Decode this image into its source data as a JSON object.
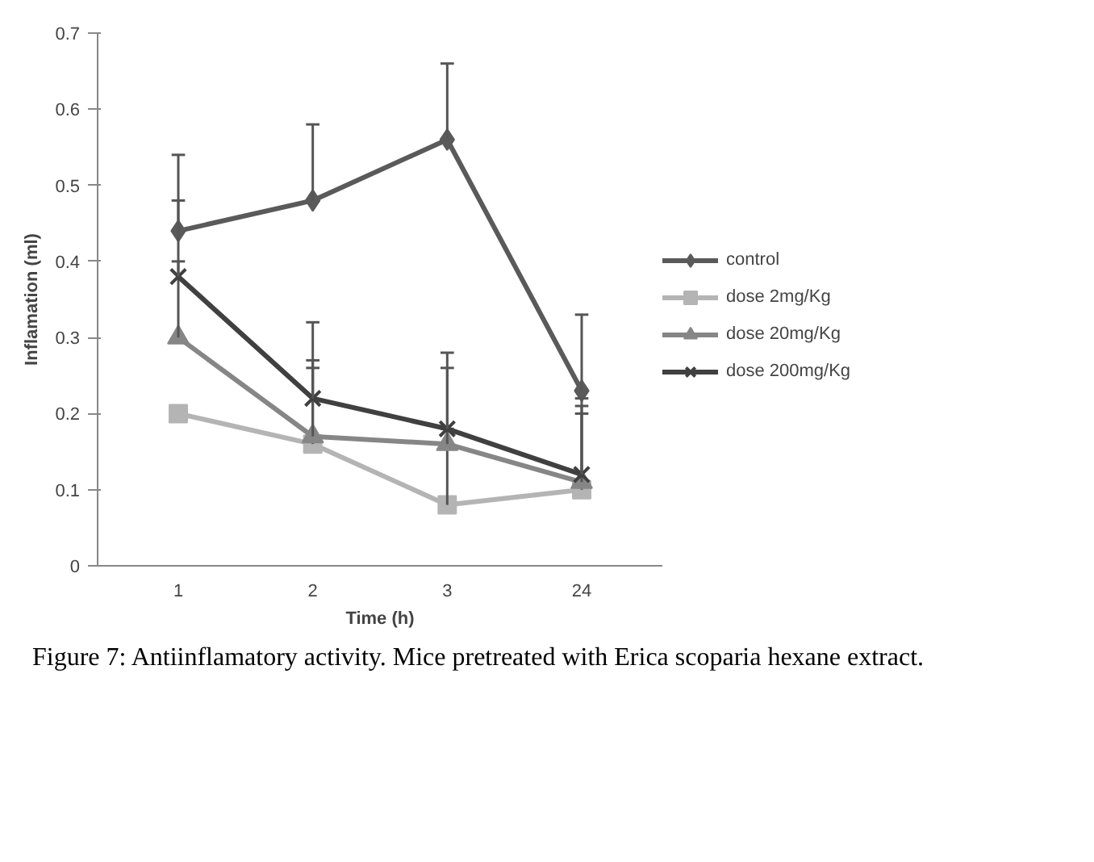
{
  "chart_data": {
    "type": "line",
    "xlabel": "Time (h)",
    "ylabel": "Inflamation (ml)",
    "categories": [
      "1",
      "2",
      "3",
      "24"
    ],
    "ylim": [
      0,
      0.7
    ],
    "yticks": [
      {
        "value": 0,
        "label": "0"
      },
      0.1,
      0.2,
      0.3,
      0.4,
      0.5,
      0.6,
      0.7
    ],
    "grid": false,
    "legend": "right",
    "series": [
      {
        "name": "control",
        "color": "#5a5a5a",
        "marker": "diamond",
        "values": [
          0.44,
          0.48,
          0.56,
          0.23
        ],
        "errors": [
          [
            0.44,
            0.54
          ],
          [
            0.48,
            0.58
          ],
          [
            0.56,
            0.66
          ],
          [
            0.23,
            0.33
          ]
        ]
      },
      {
        "name": "dose 2mg/Kg",
        "color": "#b4b4b4",
        "marker": "square",
        "values": [
          0.2,
          0.16,
          0.08,
          0.1
        ],
        "errors": [
          null,
          [
            0.16,
            0.26
          ],
          [
            0.08,
            0.18
          ],
          [
            0.1,
            0.2
          ]
        ]
      },
      {
        "name": "dose 20mg/Kg",
        "color": "#868686",
        "marker": "triangle",
        "values": [
          0.3,
          0.17,
          0.16,
          0.11
        ],
        "errors": [
          [
            0.3,
            0.4
          ],
          [
            0.17,
            0.27
          ],
          [
            0.16,
            0.26
          ],
          [
            0.11,
            0.21
          ]
        ]
      },
      {
        "name": "dose 200mg/Kg",
        "color": "#404040",
        "marker": "cross",
        "values": [
          0.38,
          0.22,
          0.18,
          0.12
        ],
        "errors": [
          [
            0.38,
            0.48
          ],
          [
            0.22,
            0.32
          ],
          [
            0.18,
            0.28
          ],
          [
            0.12,
            0.22
          ]
        ]
      }
    ],
    "annotations": [
      "Figure 7: Antiinflamatory activity. Mice pretreated with Erica scoparia hexane extract."
    ]
  }
}
